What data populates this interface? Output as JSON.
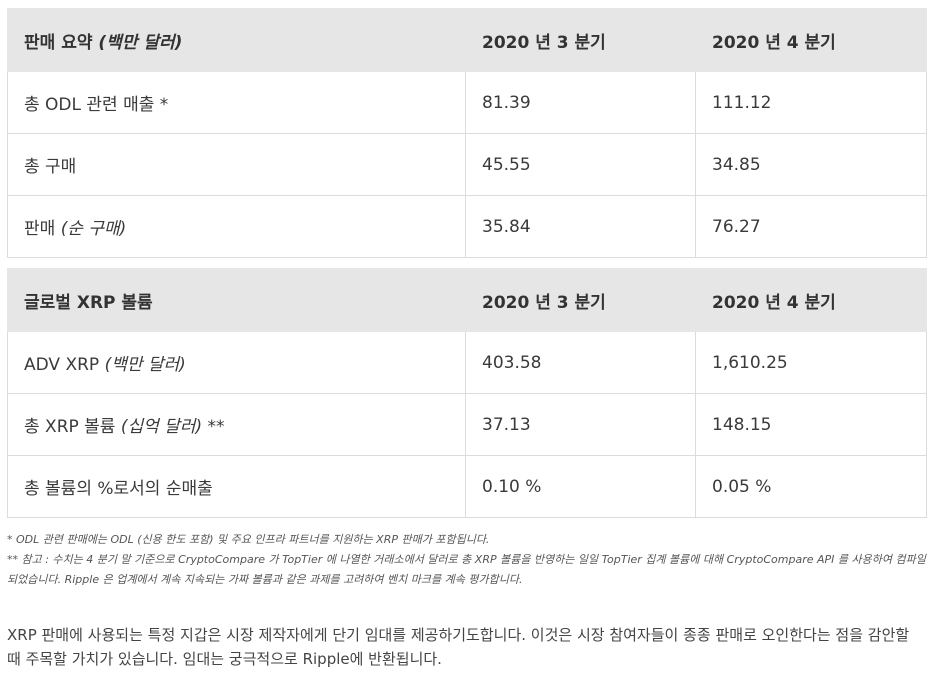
{
  "sales_table": {
    "header": {
      "label_main": "판매 요약 ",
      "label_italic": "(백만 달러)",
      "col_q3": "2020 년 3 분기",
      "col_q4": "2020 년 4 분기"
    },
    "rows": [
      {
        "label_main": "총 ODL 관련 매출 *",
        "label_italic": "",
        "q3": "81.39",
        "q4": "111.12"
      },
      {
        "label_main": "총 구매",
        "label_italic": "",
        "q3": "45.55",
        "q4": "34.85"
      },
      {
        "label_main": "판매 ",
        "label_italic": "(순 구매)",
        "q3": "35.84",
        "q4": "76.27"
      }
    ]
  },
  "volume_table": {
    "header": {
      "label_main": "글로벌 XRP 볼륨",
      "label_italic": "",
      "col_q3": "2020 년 3 분기",
      "col_q4": "2020 년 4 분기"
    },
    "rows": [
      {
        "label_main": "ADV XRP ",
        "label_italic": "(백만 달러)",
        "q3": "403.58",
        "q4": "1,610.25"
      },
      {
        "label_main": "총 XRP 볼륨 ",
        "label_italic": "(십억 달러) **",
        "q3": "37.13",
        "q4": "148.15"
      },
      {
        "label_main": "총 볼륨의 %로서의 순매출",
        "label_italic": "",
        "q3": "0.10 %",
        "q4": "0.05 %"
      }
    ]
  },
  "footnotes": {
    "note1": "* ODL 관련 판매에는 ODL (신용 한도 포함) 및 주요 인프라 파트너를 지원하는 XRP 판매가 포함됩니다.",
    "note2": "** 참고 : 수치는 4 분기 말 기준으로 CryptoCompare 가 TopTier 에 나열한 거래소에서 달러로 총 XRP 볼륨을 반영하는 일일 TopTier 집계 볼륨에 대해 CryptoCompare API 를 사용하여 컴파일되었습니다. Ripple 은 업계에서 계속 지속되는 가짜 볼륨과 같은 과제를 고려하여 벤치 마크를 계속 평가합니다."
  },
  "paragraph": "XRP 판매에 사용되는 특정 지갑은 시장 제작자에게 단기 임대를 제공하기도합니다. 이것은 시장 참여자들이 종종 판매로 오인한다는 점을 감안할 때 주목할 가치가 있습니다. 임대는 궁극적으로 Ripple에 반환됩니다."
}
